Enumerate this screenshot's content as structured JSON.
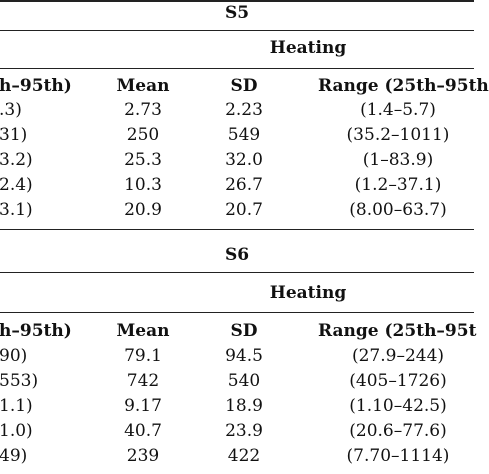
{
  "sections": [
    {
      "label": "S5",
      "group_header": "Heating",
      "col_headers": {
        "left_fragment": "h–95th)",
        "mean": "Mean",
        "sd": "SD",
        "range": "Range (25th–95th"
      },
      "rows": [
        {
          "left": ".3)",
          "mean": "2.73",
          "sd": "2.23",
          "range": "(1.4–5.7)"
        },
        {
          "left": "31)",
          "mean": "250",
          "sd": "549",
          "range": "(35.2–1011)"
        },
        {
          "left": "3.2)",
          "mean": "25.3",
          "sd": "32.0",
          "range": "(1–83.9)"
        },
        {
          "left": "2.4)",
          "mean": "10.3",
          "sd": "26.7",
          "range": "(1.2–37.1)"
        },
        {
          "left": "3.1)",
          "mean": "20.9",
          "sd": "20.7",
          "range": "(8.00–63.7)"
        }
      ]
    },
    {
      "label": "S6",
      "group_header": "Heating",
      "col_headers": {
        "left_fragment": "h–95th)",
        "mean": "Mean",
        "sd": "SD",
        "range": "Range (25th–95t"
      },
      "rows": [
        {
          "left": "90)",
          "mean": "79.1",
          "sd": "94.5",
          "range": "(27.9–244)"
        },
        {
          "left": "553)",
          "mean": "742",
          "sd": "540",
          "range": "(405–1726)"
        },
        {
          "left": "1.1)",
          "mean": "9.17",
          "sd": "18.9",
          "range": "(1.10–42.5)"
        },
        {
          "left": "1.0)",
          "mean": "40.7",
          "sd": "23.9",
          "range": "(20.6–77.6)"
        },
        {
          "left": "49)",
          "mean": "239",
          "sd": "422",
          "range": "(7.70–1114)"
        }
      ]
    }
  ]
}
